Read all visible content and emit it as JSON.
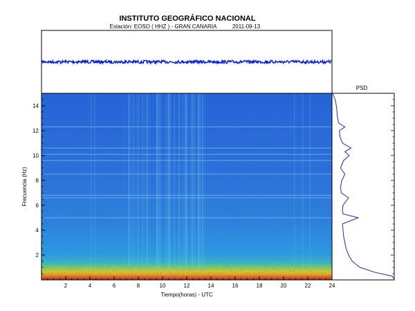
{
  "title": "INSTITUTO GEOGRÁFICO NACIONAL",
  "subtitle": {
    "station": "Estación:  EOSO ( HHZ ) - GRAN CANARIA",
    "date": "2011-09-13"
  },
  "colors": {
    "trace": "#0b1fd6",
    "psd_line": "#1a2ab8",
    "background_low": "#1f5fe0",
    "background_mid": "#2aa0e8",
    "noise_high": "#f0c020",
    "noise_peak": "#e85010"
  },
  "chart_data": [
    {
      "type": "line",
      "name": "seismogram",
      "description_visible": false,
      "series": [
        {
          "values": [
            0,
            0,
            0,
            0,
            0,
            0,
            0,
            0,
            0,
            0,
            0,
            0,
            0,
            0,
            0,
            0,
            0,
            0,
            0,
            0,
            0,
            0,
            0,
            0,
            0
          ]
        }
      ],
      "x": [
        0,
        1,
        2,
        3,
        4,
        5,
        6,
        7,
        8,
        9,
        10,
        11,
        12,
        13,
        14,
        15,
        16,
        17,
        18,
        19,
        20,
        21,
        22,
        23,
        24
      ],
      "xlim": [
        0,
        24
      ]
    },
    {
      "type": "heatmap",
      "name": "spectrogram",
      "xlabel": "Tiempo(horas) - UTC",
      "ylabel": "Frecuencia  (Hz)",
      "xlim": [
        0,
        24
      ],
      "ylim": [
        0,
        15
      ],
      "xticks": [
        2,
        4,
        6,
        8,
        10,
        12,
        14,
        16,
        18,
        20,
        22,
        24
      ],
      "yticks": [
        2,
        4,
        6,
        8,
        10,
        12,
        14
      ],
      "spectral_lines_hz": [
        12.3,
        10.6,
        10.1,
        9.6,
        8.5,
        6.8,
        6.6,
        5.0
      ],
      "noise_band_hz": [
        0,
        1.2
      ]
    },
    {
      "type": "line",
      "name": "PSD",
      "title": "PSD",
      "frequency_hz": [
        0.1,
        0.3,
        0.6,
        1.0,
        1.5,
        2.0,
        2.5,
        3.0,
        3.5,
        4.0,
        4.5,
        5.0,
        5.3,
        5.6,
        6.0,
        6.6,
        7.0,
        7.5,
        8.0,
        8.5,
        9.0,
        9.6,
        10.0,
        10.3,
        10.6,
        11.0,
        11.5,
        12.0,
        12.3,
        12.6,
        13.0,
        13.5,
        14.0,
        14.5,
        15.0
      ],
      "power_rel": [
        1.0,
        0.98,
        0.7,
        0.45,
        0.32,
        0.26,
        0.22,
        0.2,
        0.18,
        0.17,
        0.16,
        0.42,
        0.17,
        0.16,
        0.17,
        0.26,
        0.14,
        0.13,
        0.15,
        0.2,
        0.13,
        0.18,
        0.27,
        0.2,
        0.3,
        0.16,
        0.12,
        0.11,
        0.2,
        0.1,
        0.08,
        0.07,
        0.06,
        0.04,
        0.0
      ],
      "xlim": [
        0,
        1
      ],
      "ylim": [
        0,
        15
      ]
    }
  ]
}
